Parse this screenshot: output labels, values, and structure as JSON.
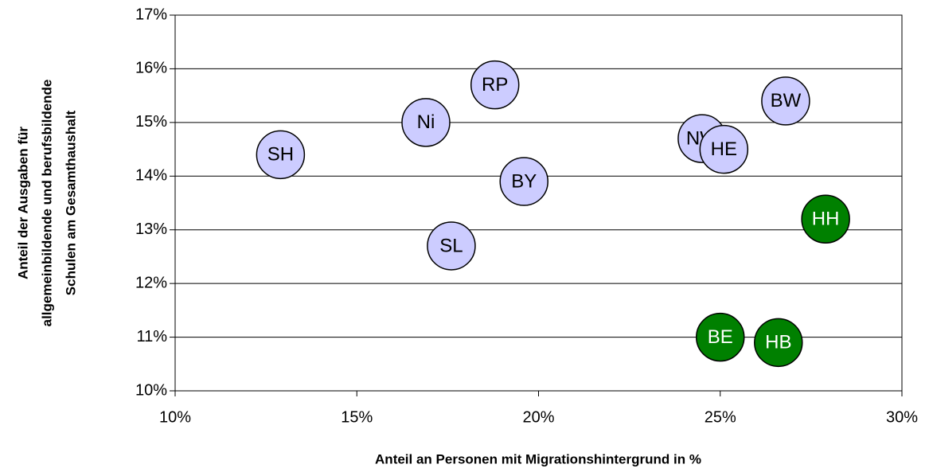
{
  "chart_data": {
    "type": "scatter",
    "xlabel": "Anteil an Personen mit Migrationshintergrund in %",
    "ylabel": [
      "Anteil der Ausgaben für",
      "allgemeinbildende und berufsbildende",
      "Schulen am Gesamthaushalt"
    ],
    "xlim": [
      10,
      30
    ],
    "xticks": [
      {
        "value": 10,
        "label": "10%"
      },
      {
        "value": 15,
        "label": "15%"
      },
      {
        "value": 20,
        "label": "20%"
      },
      {
        "value": 25,
        "label": "25%"
      },
      {
        "value": 30,
        "label": "30%"
      }
    ],
    "ylim": [
      10,
      17
    ],
    "yticks": [
      {
        "value": 10,
        "label": "10%"
      },
      {
        "value": 11,
        "label": "11%"
      },
      {
        "value": 12,
        "label": "12%"
      },
      {
        "value": 13,
        "label": "13%"
      },
      {
        "value": 14,
        "label": "14%"
      },
      {
        "value": 15,
        "label": "15%"
      },
      {
        "value": 16,
        "label": "16%"
      },
      {
        "value": 17,
        "label": "17%"
      }
    ],
    "grid": true,
    "series": [
      {
        "color": "#ccccff",
        "text_color": "#000000",
        "labels": [
          "SH",
          "Ni",
          "RP",
          "BY",
          "SL",
          "NW",
          "HE",
          "BW"
        ],
        "x": [
          12.9,
          16.9,
          18.8,
          19.6,
          17.6,
          24.5,
          25.1,
          26.8
        ],
        "values": [
          14.4,
          15.0,
          15.7,
          13.9,
          12.7,
          14.7,
          14.5,
          15.4
        ]
      },
      {
        "color": "#008000",
        "text_color": "#ffffff",
        "labels": [
          "HH",
          "BE",
          "HB"
        ],
        "x": [
          27.9,
          25.0,
          26.6
        ],
        "values": [
          13.2,
          11.0,
          10.9
        ]
      }
    ]
  }
}
